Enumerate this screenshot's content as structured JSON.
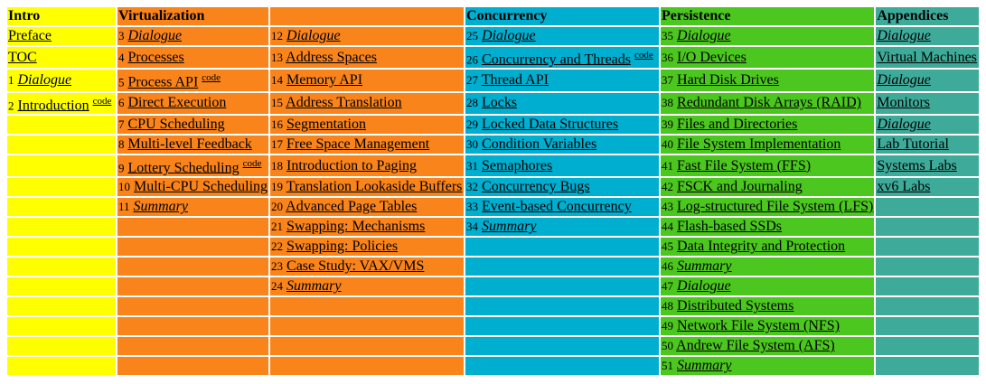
{
  "headers": [
    "Intro",
    "Virtualization",
    "",
    "Concurrency",
    "Persistence",
    "Appendices"
  ],
  "rows": [
    [
      {
        "text": "Preface"
      },
      {
        "num": "3",
        "text": "Dialogue",
        "italic": true
      },
      {
        "num": "12",
        "text": "Dialogue",
        "italic": true
      },
      {
        "num": "25",
        "text": "Dialogue",
        "italic": true
      },
      {
        "num": "35",
        "text": "Dialogue",
        "italic": true
      },
      {
        "text": "Dialogue",
        "italic": true
      }
    ],
    [
      {
        "text": "TOC"
      },
      {
        "num": "4",
        "text": "Processes"
      },
      {
        "num": "13",
        "text": "Address Spaces"
      },
      {
        "num": "26",
        "text": "Concurrency and Threads",
        "code": "code"
      },
      {
        "num": "36",
        "text": "I/O Devices"
      },
      {
        "text": "Virtual Machines"
      }
    ],
    [
      {
        "num": "1",
        "text": "Dialogue",
        "italic": true
      },
      {
        "num": "5",
        "text": "Process API",
        "code": "code"
      },
      {
        "num": "14",
        "text": "Memory API"
      },
      {
        "num": "27",
        "text": "Thread API"
      },
      {
        "num": "37",
        "text": "Hard Disk Drives"
      },
      {
        "text": "Dialogue",
        "italic": true
      }
    ],
    [
      {
        "num": "2",
        "text": "Introduction",
        "code": "code"
      },
      {
        "num": "6",
        "text": "Direct Execution"
      },
      {
        "num": "15",
        "text": "Address Translation"
      },
      {
        "num": "28",
        "text": "Locks"
      },
      {
        "num": "38",
        "text": "Redundant Disk Arrays (RAID)"
      },
      {
        "text": "Monitors"
      }
    ],
    [
      {},
      {
        "num": "7",
        "text": "CPU Scheduling"
      },
      {
        "num": "16",
        "text": "Segmentation"
      },
      {
        "num": "29",
        "text": "Locked Data Structures"
      },
      {
        "num": "39",
        "text": "Files and Directories"
      },
      {
        "text": "Dialogue",
        "italic": true
      }
    ],
    [
      {},
      {
        "num": "8",
        "text": "Multi-level Feedback"
      },
      {
        "num": "17",
        "text": "Free Space Management"
      },
      {
        "num": "30",
        "text": "Condition Variables"
      },
      {
        "num": "40",
        "text": "File System Implementation"
      },
      {
        "text": "Lab Tutorial"
      }
    ],
    [
      {},
      {
        "num": "9",
        "text": "Lottery Scheduling",
        "code": "code"
      },
      {
        "num": "18",
        "text": "Introduction to Paging"
      },
      {
        "num": "31",
        "text": "Semaphores"
      },
      {
        "num": "41",
        "text": "Fast File System (FFS)"
      },
      {
        "text": "Systems Labs"
      }
    ],
    [
      {},
      {
        "num": "10",
        "text": "Multi-CPU Scheduling"
      },
      {
        "num": "19",
        "text": "Translation Lookaside Buffers"
      },
      {
        "num": "32",
        "text": "Concurrency Bugs"
      },
      {
        "num": "42",
        "text": "FSCK and Journaling"
      },
      {
        "text": "xv6 Labs"
      }
    ],
    [
      {},
      {
        "num": "11",
        "text": "Summary",
        "italic": true
      },
      {
        "num": "20",
        "text": "Advanced Page Tables"
      },
      {
        "num": "33",
        "text": "Event-based Concurrency"
      },
      {
        "num": "43",
        "text": "Log-structured File System (LFS)"
      },
      {}
    ],
    [
      {},
      {},
      {
        "num": "21",
        "text": "Swapping: Mechanisms"
      },
      {
        "num": "34",
        "text": "Summary",
        "italic": true
      },
      {
        "num": "44",
        "text": "Flash-based SSDs"
      },
      {}
    ],
    [
      {},
      {},
      {
        "num": "22",
        "text": "Swapping: Policies"
      },
      {},
      {
        "num": "45",
        "text": "Data Integrity and Protection"
      },
      {}
    ],
    [
      {},
      {},
      {
        "num": "23",
        "text": "Case Study: VAX/VMS"
      },
      {},
      {
        "num": "46",
        "text": "Summary",
        "italic": true
      },
      {}
    ],
    [
      {},
      {},
      {
        "num": "24",
        "text": "Summary",
        "italic": true
      },
      {},
      {
        "num": "47",
        "text": "Dialogue",
        "italic": true
      },
      {}
    ],
    [
      {},
      {},
      {},
      {},
      {
        "num": "48",
        "text": "Distributed Systems"
      },
      {}
    ],
    [
      {},
      {},
      {},
      {},
      {
        "num": "49",
        "text": "Network File System (NFS)"
      },
      {}
    ],
    [
      {},
      {},
      {},
      {},
      {
        "num": "50",
        "text": "Andrew File System (AFS)"
      },
      {}
    ],
    [
      {},
      {},
      {},
      {},
      {
        "num": "51",
        "text": "Summary",
        "italic": true
      },
      {}
    ]
  ],
  "colors": {
    "intro": "#ffff00",
    "virtualization": "#f9841b",
    "concurrency": "#00aecf",
    "persistence": "#4cc71f",
    "appendices": "#3eab9a"
  }
}
